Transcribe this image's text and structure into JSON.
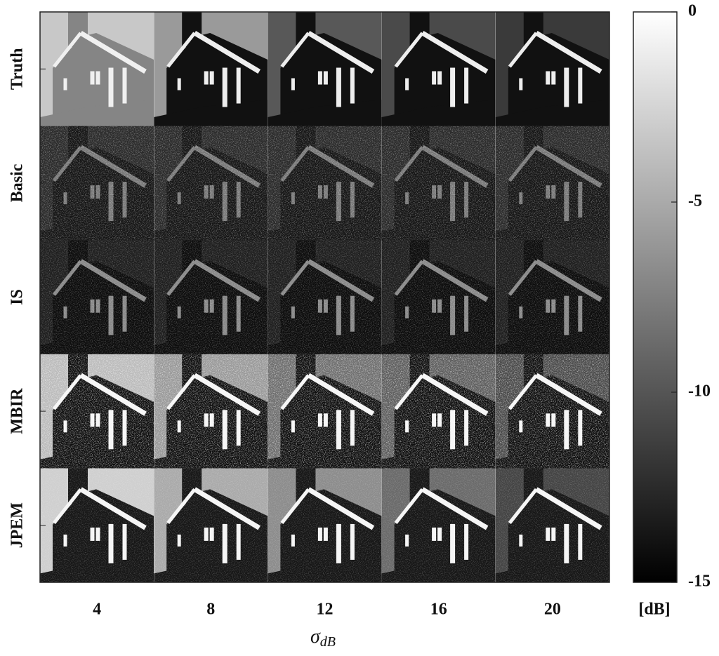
{
  "rows": [
    "Truth",
    "Basic",
    "IS",
    "MBIR",
    "JPEM"
  ],
  "columns": [
    "4",
    "8",
    "12",
    "16",
    "20"
  ],
  "xlabel": {
    "symbol": "σ",
    "subscript": "dB"
  },
  "colorbar": {
    "lim": [
      -15,
      0
    ],
    "ticks": [
      0,
      -5,
      -10,
      -15
    ],
    "unit": "[dB]"
  }
}
